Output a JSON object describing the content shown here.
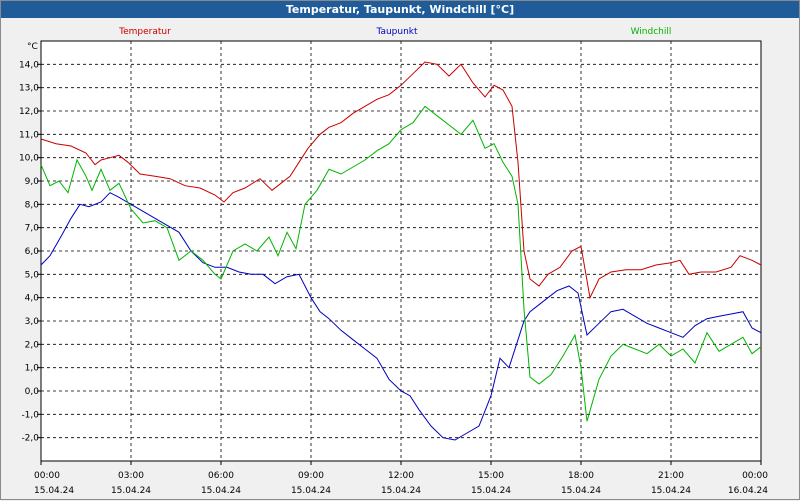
{
  "chart_data": {
    "type": "line",
    "title": "Temperatur, Taupunkt, Windchill [°C]",
    "ylabel": "°C",
    "ylim": [
      -3,
      15
    ],
    "ytick_values": [
      -2,
      -1,
      0,
      1,
      2,
      3,
      4,
      5,
      6,
      7,
      8,
      9,
      10,
      11,
      12,
      13,
      14
    ],
    "ytick_labels": [
      "-2,0",
      "-1,0",
      "0,0",
      "1,0",
      "2,0",
      "3,0",
      "4,0",
      "5,0",
      "6,0",
      "7,0",
      "8,0",
      "9,0",
      "10,0",
      "11,0",
      "12,0",
      "13,0",
      "14,0"
    ],
    "xlim": [
      0,
      24
    ],
    "xtick_hours": [
      0,
      3,
      6,
      9,
      12,
      15,
      18,
      21,
      24
    ],
    "xtick_time_labels": [
      "00:00",
      "03:00",
      "06:00",
      "09:00",
      "12:00",
      "15:00",
      "18:00",
      "21:00",
      "00:00"
    ],
    "xtick_date_labels": [
      "15.04.24",
      "15.04.24",
      "15.04.24",
      "15.04.24",
      "15.04.24",
      "15.04.24",
      "15.04.24",
      "15.04.24",
      "16.04.24"
    ],
    "grid": true,
    "x_unit": "hours since 15.04.24 00:00",
    "series": [
      {
        "name": "Temperatur",
        "color": "#c80000",
        "x": [
          0,
          0.5,
          1,
          1.5,
          1.8,
          2,
          2.3,
          2.6,
          2.9,
          3.3,
          3.8,
          4.3,
          4.8,
          5.3,
          5.8,
          6.1,
          6.4,
          6.8,
          7.3,
          7.7,
          8.0,
          8.3,
          8.6,
          8.9,
          9.3,
          9.6,
          10.0,
          10.4,
          10.8,
          11.2,
          11.6,
          12.0,
          12.4,
          12.8,
          13.2,
          13.6,
          14.0,
          14.4,
          14.8,
          15.1,
          15.4,
          15.7,
          15.9,
          16.1,
          16.3,
          16.6,
          16.9,
          17.3,
          17.7,
          18.0,
          18.3,
          18.6,
          19.0,
          19.5,
          20.0,
          20.5,
          21.0,
          21.3,
          21.6,
          22.0,
          22.5,
          23.0,
          23.3,
          23.7,
          24.0
        ],
        "values": [
          10.8,
          10.6,
          10.5,
          10.2,
          9.7,
          9.9,
          10.0,
          10.1,
          9.8,
          9.3,
          9.2,
          9.1,
          8.8,
          8.7,
          8.4,
          8.1,
          8.5,
          8.7,
          9.1,
          8.6,
          8.9,
          9.2,
          9.8,
          10.4,
          11.0,
          11.3,
          11.5,
          11.9,
          12.2,
          12.5,
          12.7,
          13.1,
          13.6,
          14.1,
          14.0,
          13.5,
          14.0,
          13.2,
          12.6,
          13.1,
          12.9,
          12.2,
          9.8,
          6.0,
          4.8,
          4.5,
          5.0,
          5.3,
          6.0,
          6.2,
          4.0,
          4.8,
          5.1,
          5.2,
          5.2,
          5.4,
          5.5,
          5.6,
          5.0,
          5.1,
          5.1,
          5.3,
          5.8,
          5.6,
          5.4
        ]
      },
      {
        "name": "Taupunkt",
        "color": "#0000c0",
        "x": [
          0,
          0.3,
          0.7,
          1.0,
          1.3,
          1.6,
          2.0,
          2.3,
          2.6,
          3.0,
          3.4,
          3.8,
          4.2,
          4.6,
          5.0,
          5.4,
          5.8,
          6.2,
          6.6,
          7.0,
          7.4,
          7.8,
          8.2,
          8.6,
          9.0,
          9.3,
          9.6,
          10.0,
          10.4,
          10.8,
          11.2,
          11.6,
          12.0,
          12.3,
          12.6,
          13.0,
          13.4,
          13.8,
          14.2,
          14.6,
          15.0,
          15.3,
          15.6,
          15.9,
          16.1,
          16.3,
          16.6,
          16.9,
          17.2,
          17.6,
          17.9,
          18.2,
          18.6,
          19.0,
          19.4,
          19.8,
          20.2,
          20.6,
          21.0,
          21.4,
          21.8,
          22.2,
          22.6,
          23.0,
          23.4,
          23.7,
          24.0
        ],
        "values": [
          5.4,
          5.8,
          6.7,
          7.4,
          8.0,
          7.9,
          8.1,
          8.5,
          8.3,
          8.0,
          7.7,
          7.4,
          7.1,
          6.8,
          6.0,
          5.5,
          5.3,
          5.3,
          5.1,
          5.0,
          5.0,
          4.6,
          4.9,
          5.0,
          4.0,
          3.4,
          3.1,
          2.6,
          2.2,
          1.8,
          1.4,
          0.5,
          0.0,
          -0.2,
          -0.8,
          -1.5,
          -2.0,
          -2.1,
          -1.8,
          -1.5,
          -0.2,
          1.4,
          1.0,
          2.2,
          3.0,
          3.4,
          3.7,
          4.0,
          4.3,
          4.5,
          4.2,
          2.4,
          2.9,
          3.4,
          3.5,
          3.2,
          2.9,
          2.7,
          2.5,
          2.3,
          2.8,
          3.1,
          3.2,
          3.3,
          3.4,
          2.7,
          2.5
        ]
      },
      {
        "name": "Windchill",
        "color": "#00b400",
        "x": [
          0,
          0.3,
          0.6,
          0.9,
          1.2,
          1.5,
          1.7,
          2.0,
          2.3,
          2.6,
          3.0,
          3.4,
          3.8,
          4.2,
          4.6,
          5.0,
          5.4,
          5.8,
          6.0,
          6.4,
          6.8,
          7.2,
          7.6,
          7.9,
          8.2,
          8.5,
          8.8,
          9.2,
          9.6,
          10.0,
          10.4,
          10.8,
          11.2,
          11.6,
          12.0,
          12.4,
          12.8,
          13.2,
          13.6,
          14.0,
          14.4,
          14.8,
          15.1,
          15.4,
          15.7,
          15.9,
          16.1,
          16.3,
          16.6,
          17.0,
          17.4,
          17.8,
          18.0,
          18.2,
          18.6,
          19.0,
          19.4,
          19.8,
          20.2,
          20.6,
          21.0,
          21.4,
          21.8,
          22.2,
          22.6,
          23.0,
          23.4,
          23.7,
          24.0
        ],
        "values": [
          9.7,
          8.8,
          9.0,
          8.5,
          9.9,
          9.2,
          8.6,
          9.5,
          8.6,
          8.9,
          7.8,
          7.2,
          7.3,
          7.0,
          5.6,
          6.0,
          5.6,
          5.0,
          4.8,
          6.0,
          6.3,
          6.0,
          6.6,
          5.8,
          6.8,
          6.1,
          8.0,
          8.6,
          9.5,
          9.3,
          9.6,
          9.9,
          10.3,
          10.6,
          11.2,
          11.5,
          12.2,
          11.8,
          11.4,
          11.0,
          11.6,
          10.4,
          10.6,
          9.8,
          9.2,
          8.0,
          3.5,
          0.6,
          0.3,
          0.7,
          1.5,
          2.4,
          1.0,
          -1.3,
          0.5,
          1.5,
          2.0,
          1.8,
          1.6,
          2.0,
          1.5,
          1.8,
          1.2,
          2.5,
          1.7,
          2.0,
          2.3,
          1.6,
          1.9
        ]
      }
    ]
  }
}
